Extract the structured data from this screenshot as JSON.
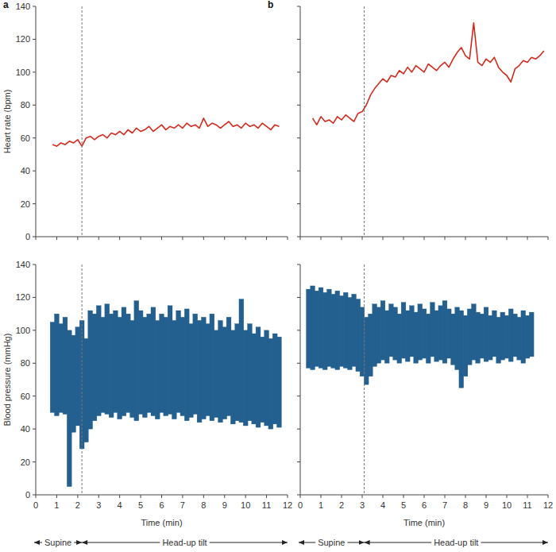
{
  "chart_data": [
    {
      "type": "line",
      "title": "a",
      "ylabel": "Heart rate (bpm)",
      "tick_labels": "y",
      "xlim": [
        0,
        12
      ],
      "ylim": [
        0,
        140
      ],
      "xticks": [
        0,
        1,
        2,
        3,
        4,
        5,
        6,
        7,
        8,
        9,
        10,
        11,
        12
      ],
      "yticks": [
        0,
        20,
        40,
        60,
        80,
        100,
        120,
        140
      ],
      "tilt_time": 2.2,
      "x": [
        0.8,
        1.0,
        1.2,
        1.4,
        1.6,
        1.8,
        2.0,
        2.2,
        2.4,
        2.6,
        2.8,
        3.0,
        3.2,
        3.4,
        3.6,
        3.8,
        4.0,
        4.2,
        4.4,
        4.6,
        4.8,
        5.0,
        5.2,
        5.4,
        5.6,
        5.8,
        6.0,
        6.2,
        6.4,
        6.6,
        6.8,
        7.0,
        7.2,
        7.4,
        7.6,
        7.8,
        8.0,
        8.2,
        8.4,
        8.6,
        8.8,
        9.0,
        9.2,
        9.4,
        9.6,
        9.8,
        10.0,
        10.2,
        10.4,
        10.6,
        10.8,
        11.0,
        11.2,
        11.4,
        11.6
      ],
      "series": [
        {
          "color": "#d42b1e",
          "values": [
            56,
            55,
            57,
            56,
            58,
            57,
            59,
            55,
            60,
            61,
            59,
            61,
            62,
            60,
            63,
            62,
            64,
            62,
            65,
            63,
            66,
            64,
            65,
            67,
            64,
            66,
            68,
            65,
            67,
            66,
            68,
            66,
            69,
            67,
            68,
            66,
            72,
            67,
            69,
            68,
            66,
            68,
            70,
            67,
            68,
            66,
            69,
            67,
            68,
            66,
            69,
            67,
            65,
            68,
            67
          ]
        }
      ]
    },
    {
      "type": "line",
      "title": "b",
      "tick_labels": false,
      "xlim": [
        0,
        12
      ],
      "ylim": [
        0,
        140
      ],
      "xticks": [
        0,
        1,
        2,
        3,
        4,
        5,
        6,
        7,
        8,
        9,
        10,
        11,
        12
      ],
      "yticks": [
        0,
        20,
        40,
        60,
        80,
        100,
        120,
        140
      ],
      "tilt_time": 3.1,
      "x": [
        0.6,
        0.8,
        1.0,
        1.2,
        1.4,
        1.6,
        1.8,
        2.0,
        2.2,
        2.4,
        2.6,
        2.8,
        3.0,
        3.2,
        3.4,
        3.6,
        3.8,
        4.0,
        4.2,
        4.4,
        4.6,
        4.8,
        5.0,
        5.2,
        5.4,
        5.6,
        5.8,
        6.0,
        6.2,
        6.4,
        6.6,
        6.8,
        7.0,
        7.2,
        7.4,
        7.6,
        7.8,
        8.0,
        8.2,
        8.4,
        8.6,
        8.8,
        9.0,
        9.2,
        9.4,
        9.6,
        9.8,
        10.0,
        10.2,
        10.4,
        10.6,
        10.8,
        11.0,
        11.2,
        11.4,
        11.6,
        11.8
      ],
      "series": [
        {
          "color": "#d42b1e",
          "values": [
            72,
            68,
            73,
            70,
            71,
            69,
            73,
            71,
            74,
            72,
            70,
            75,
            76,
            80,
            86,
            90,
            93,
            96,
            94,
            98,
            97,
            101,
            99,
            103,
            100,
            104,
            102,
            100,
            105,
            103,
            101,
            104,
            106,
            103,
            108,
            112,
            115,
            110,
            108,
            130,
            106,
            104,
            108,
            106,
            109,
            103,
            100,
            98,
            94,
            102,
            104,
            107,
            106,
            109,
            108,
            110,
            113
          ]
        }
      ]
    },
    {
      "type": "range",
      "ylabel": "Blood pressure (mmHg)",
      "xlabel": "Time (min)",
      "xlim": [
        0,
        12
      ],
      "ylim": [
        0,
        140
      ],
      "xticks": [
        0,
        1,
        2,
        3,
        4,
        5,
        6,
        7,
        8,
        9,
        10,
        11,
        12
      ],
      "yticks": [
        0,
        20,
        40,
        60,
        80,
        100,
        120,
        140
      ],
      "tilt_time": 2.2,
      "annotations": [
        {
          "text": "Supine",
          "x": [
            0,
            2.2
          ]
        },
        {
          "text": "Head-up tilt",
          "x": [
            2.2,
            12
          ]
        }
      ],
      "x": [
        0.8,
        1.0,
        1.2,
        1.4,
        1.6,
        1.8,
        2.0,
        2.2,
        2.4,
        2.6,
        2.8,
        3.0,
        3.2,
        3.4,
        3.6,
        3.8,
        4.0,
        4.2,
        4.4,
        4.6,
        4.8,
        5.0,
        5.2,
        5.4,
        5.6,
        5.8,
        6.0,
        6.2,
        6.4,
        6.6,
        6.8,
        7.0,
        7.2,
        7.4,
        7.6,
        7.8,
        8.0,
        8.2,
        8.4,
        8.6,
        8.8,
        9.0,
        9.2,
        9.4,
        9.6,
        9.8,
        10.0,
        10.2,
        10.4,
        10.6,
        10.8,
        11.0,
        11.2,
        11.4,
        11.6
      ],
      "series": [
        {
          "color": "#24608f",
          "values": [
            105,
            110,
            104,
            108,
            100,
            97,
            102,
            106,
            95,
            112,
            110,
            115,
            108,
            116,
            110,
            112,
            108,
            114,
            110,
            106,
            118,
            112,
            108,
            110,
            114,
            106,
            110,
            108,
            115,
            106,
            112,
            108,
            113,
            104,
            110,
            106,
            108,
            104,
            110,
            100,
            106,
            102,
            108,
            100,
            104,
            119,
            100,
            104,
            98,
            102,
            96,
            100,
            95,
            98,
            96
          ]
        },
        {
          "color": "#24608f",
          "values": [
            50,
            48,
            50,
            49,
            5,
            38,
            42,
            28,
            32,
            40,
            45,
            48,
            50,
            49,
            47,
            50,
            46,
            48,
            50,
            47,
            45,
            49,
            47,
            50,
            48,
            46,
            50,
            48,
            49,
            46,
            50,
            48,
            45,
            47,
            49,
            44,
            46,
            48,
            45,
            47,
            44,
            46,
            48,
            43,
            45,
            44,
            42,
            45,
            43,
            41,
            44,
            42,
            40,
            43,
            41
          ]
        }
      ]
    },
    {
      "type": "range",
      "xlabel": "Time (min)",
      "tick_labels": "x",
      "xlim": [
        0,
        12
      ],
      "ylim": [
        0,
        140
      ],
      "xticks": [
        0,
        1,
        2,
        3,
        4,
        5,
        6,
        7,
        8,
        9,
        10,
        11,
        12
      ],
      "yticks": [
        0,
        20,
        40,
        60,
        80,
        100,
        120,
        140
      ],
      "tilt_time": 3.1,
      "annotations": [
        {
          "text": "Supine",
          "x": [
            0,
            3.1
          ]
        },
        {
          "text": "Head-up tilt",
          "x": [
            3.1,
            12
          ]
        }
      ],
      "x": [
        0.4,
        0.6,
        0.8,
        1.0,
        1.2,
        1.4,
        1.6,
        1.8,
        2.0,
        2.2,
        2.4,
        2.6,
        2.8,
        3.0,
        3.2,
        3.4,
        3.6,
        3.8,
        4.0,
        4.2,
        4.4,
        4.6,
        4.8,
        5.0,
        5.2,
        5.4,
        5.6,
        5.8,
        6.0,
        6.2,
        6.4,
        6.6,
        6.8,
        7.0,
        7.2,
        7.4,
        7.6,
        7.8,
        8.0,
        8.2,
        8.4,
        8.6,
        8.8,
        9.0,
        9.2,
        9.4,
        9.6,
        9.8,
        10.0,
        10.2,
        10.4,
        10.6,
        10.8,
        11.0,
        11.2
      ],
      "series": [
        {
          "color": "#24608f",
          "values": [
            125,
            127,
            124,
            126,
            123,
            125,
            122,
            124,
            121,
            123,
            120,
            122,
            119,
            114,
            108,
            110,
            116,
            114,
            118,
            112,
            116,
            114,
            110,
            117,
            112,
            115,
            111,
            116,
            113,
            110,
            117,
            112,
            115,
            118,
            113,
            110,
            114,
            112,
            109,
            113,
            116,
            111,
            110,
            114,
            109,
            112,
            108,
            111,
            109,
            113,
            110,
            108,
            112,
            109,
            111
          ]
        },
        {
          "color": "#24608f",
          "values": [
            77,
            76,
            78,
            77,
            76,
            78,
            77,
            76,
            78,
            77,
            76,
            78,
            75,
            72,
            67,
            72,
            78,
            80,
            82,
            80,
            84,
            82,
            80,
            83,
            81,
            84,
            80,
            82,
            83,
            80,
            84,
            81,
            82,
            80,
            83,
            79,
            76,
            65,
            72,
            79,
            82,
            80,
            83,
            81,
            82,
            84,
            80,
            82,
            83,
            81,
            84,
            82,
            80,
            83,
            84
          ]
        }
      ]
    }
  ]
}
